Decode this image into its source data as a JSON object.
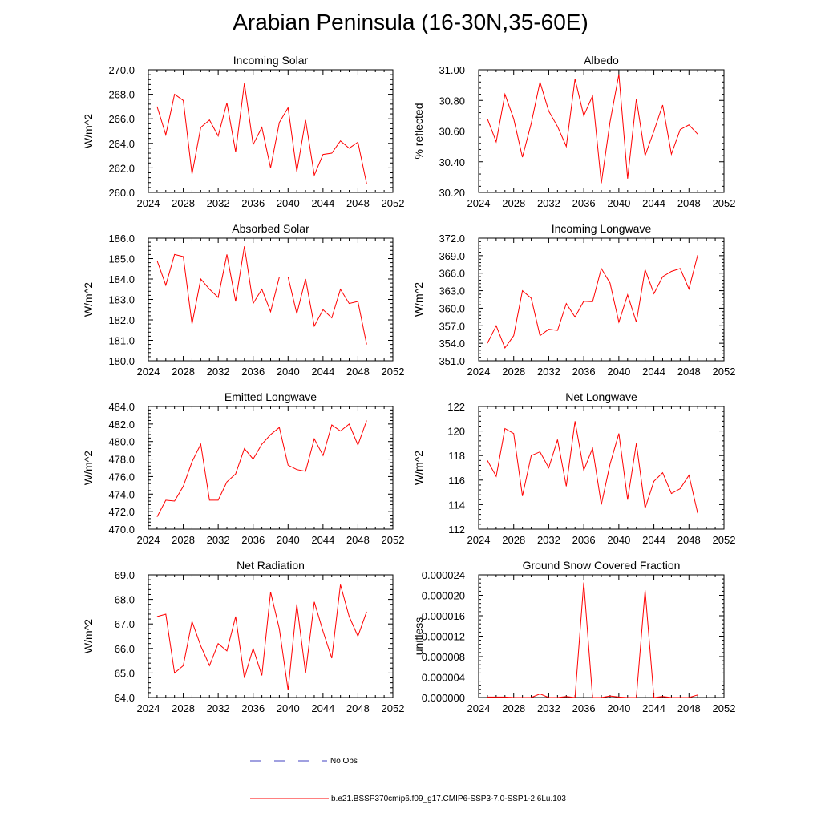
{
  "title": "Arabian Peninsula (16-30N,35-60E)",
  "legend": {
    "obs_label": "No Obs",
    "obs_color": "#4040c0",
    "model_label": "b.e21.BSSP370cmip6.f09_g17.CMIP6-SSP3-7.0-SSP1-2.6Lu.103",
    "model_color": "#ff0000"
  },
  "chart_data": [
    {
      "type": "line",
      "title": "Incoming Solar",
      "ylabel": "W/m^2",
      "xlim": [
        2024,
        2052
      ],
      "ylim": [
        260,
        270
      ],
      "xticks": [
        "2024",
        "2028",
        "2032",
        "2036",
        "2040",
        "2044",
        "2048",
        "2052"
      ],
      "yticks": [
        "260.0",
        "262.0",
        "264.0",
        "266.0",
        "268.0",
        "270.0"
      ],
      "x": [
        2025,
        2026,
        2027,
        2028,
        2029,
        2030,
        2031,
        2032,
        2033,
        2034,
        2035,
        2036,
        2037,
        2038,
        2039,
        2040,
        2041,
        2042,
        2043,
        2044,
        2045,
        2046,
        2047,
        2048,
        2049
      ],
      "y": [
        267.0,
        264.7,
        268.0,
        267.5,
        261.5,
        265.3,
        265.9,
        264.6,
        267.3,
        263.3,
        268.9,
        263.9,
        265.3,
        262.0,
        265.7,
        266.9,
        261.7,
        265.9,
        261.4,
        263.1,
        263.2,
        264.2,
        263.6,
        264.1,
        260.7
      ]
    },
    {
      "type": "line",
      "title": "Albedo",
      "ylabel": "% reflected",
      "xlim": [
        2024,
        2052
      ],
      "ylim": [
        30.2,
        31.0
      ],
      "xticks": [
        "2024",
        "2028",
        "2032",
        "2036",
        "2040",
        "2044",
        "2048",
        "2052"
      ],
      "yticks": [
        "30.20",
        "30.40",
        "30.60",
        "30.80",
        "31.00"
      ],
      "x": [
        2025,
        2026,
        2027,
        2028,
        2029,
        2030,
        2031,
        2032,
        2033,
        2034,
        2035,
        2036,
        2037,
        2038,
        2039,
        2040,
        2041,
        2042,
        2043,
        2044,
        2045,
        2046,
        2047,
        2048,
        2049
      ],
      "y": [
        30.68,
        30.53,
        30.84,
        30.68,
        30.43,
        30.65,
        30.92,
        30.73,
        30.63,
        30.5,
        30.94,
        30.7,
        30.83,
        30.26,
        30.66,
        30.97,
        30.29,
        30.81,
        30.44,
        30.6,
        30.77,
        30.45,
        30.61,
        30.64,
        30.58
      ]
    },
    {
      "type": "line",
      "title": "Absorbed Solar",
      "ylabel": "W/m^2",
      "xlim": [
        2024,
        2052
      ],
      "ylim": [
        180,
        186
      ],
      "xticks": [
        "2024",
        "2028",
        "2032",
        "2036",
        "2040",
        "2044",
        "2048",
        "2052"
      ],
      "yticks": [
        "180.0",
        "181.0",
        "182.0",
        "183.0",
        "184.0",
        "185.0",
        "186.0"
      ],
      "x": [
        2025,
        2026,
        2027,
        2028,
        2029,
        2030,
        2031,
        2032,
        2033,
        2034,
        2035,
        2036,
        2037,
        2038,
        2039,
        2040,
        2041,
        2042,
        2043,
        2044,
        2045,
        2046,
        2047,
        2048,
        2049
      ],
      "y": [
        184.9,
        183.7,
        185.2,
        185.1,
        181.8,
        184.0,
        183.5,
        183.1,
        185.2,
        182.9,
        185.6,
        182.8,
        183.5,
        182.4,
        184.1,
        184.1,
        182.3,
        184.0,
        181.7,
        182.5,
        182.1,
        183.5,
        182.8,
        182.9,
        180.8
      ]
    },
    {
      "type": "line",
      "title": "Incoming Longwave",
      "ylabel": "W/m^2",
      "xlim": [
        2024,
        2052
      ],
      "ylim": [
        351,
        372
      ],
      "xticks": [
        "2024",
        "2028",
        "2032",
        "2036",
        "2040",
        "2044",
        "2048",
        "2052"
      ],
      "yticks": [
        "351.0",
        "354.0",
        "357.0",
        "360.0",
        "363.0",
        "366.0",
        "369.0",
        "372.0"
      ],
      "x": [
        2025,
        2026,
        2027,
        2028,
        2029,
        2030,
        2031,
        2032,
        2033,
        2034,
        2035,
        2036,
        2037,
        2038,
        2039,
        2040,
        2041,
        2042,
        2043,
        2044,
        2045,
        2046,
        2047,
        2048,
        2049
      ],
      "y": [
        354.0,
        357.0,
        353.2,
        355.3,
        363.0,
        361.7,
        355.3,
        356.4,
        356.2,
        360.8,
        358.5,
        361.2,
        361.1,
        366.8,
        364.3,
        357.6,
        362.3,
        357.6,
        366.6,
        362.5,
        365.4,
        366.3,
        366.8,
        363.3,
        369.1
      ]
    },
    {
      "type": "line",
      "title": "Emitted Longwave",
      "ylabel": "W/m^2",
      "xlim": [
        2024,
        2052
      ],
      "ylim": [
        470,
        484
      ],
      "xticks": [
        "2024",
        "2028",
        "2032",
        "2036",
        "2040",
        "2044",
        "2048",
        "2052"
      ],
      "yticks": [
        "470.0",
        "472.0",
        "474.0",
        "476.0",
        "478.0",
        "480.0",
        "482.0",
        "484.0"
      ],
      "x": [
        2025,
        2026,
        2027,
        2028,
        2029,
        2030,
        2031,
        2032,
        2033,
        2034,
        2035,
        2036,
        2037,
        2038,
        2039,
        2040,
        2041,
        2042,
        2043,
        2044,
        2045,
        2046,
        2047,
        2048,
        2049
      ],
      "y": [
        471.4,
        473.3,
        473.2,
        474.9,
        477.7,
        479.7,
        473.3,
        473.3,
        475.4,
        476.3,
        479.2,
        478.0,
        479.7,
        480.8,
        481.6,
        477.3,
        476.8,
        476.6,
        480.3,
        478.4,
        481.9,
        481.2,
        482.0,
        479.6,
        482.4
      ]
    },
    {
      "type": "line",
      "title": "Net Longwave",
      "ylabel": "W/m^2",
      "xlim": [
        2024,
        2052
      ],
      "ylim": [
        112,
        122
      ],
      "xticks": [
        "2024",
        "2028",
        "2032",
        "2036",
        "2040",
        "2044",
        "2048",
        "2052"
      ],
      "yticks": [
        "112",
        "114",
        "116",
        "118",
        "120",
        "122"
      ],
      "x": [
        2025,
        2026,
        2027,
        2028,
        2029,
        2030,
        2031,
        2032,
        2033,
        2034,
        2035,
        2036,
        2037,
        2038,
        2039,
        2040,
        2041,
        2042,
        2043,
        2044,
        2045,
        2046,
        2047,
        2048,
        2049
      ],
      "y": [
        117.6,
        116.3,
        120.2,
        119.8,
        114.7,
        118.0,
        118.3,
        117.0,
        119.3,
        115.5,
        120.8,
        116.8,
        118.6,
        114.0,
        117.3,
        119.8,
        114.4,
        119.0,
        113.7,
        115.9,
        116.6,
        114.9,
        115.3,
        116.4,
        113.3
      ]
    },
    {
      "type": "line",
      "title": "Net Radiation",
      "ylabel": "W/m^2",
      "xlim": [
        2024,
        2052
      ],
      "ylim": [
        64,
        69
      ],
      "xticks": [
        "2024",
        "2028",
        "2032",
        "2036",
        "2040",
        "2044",
        "2048",
        "2052"
      ],
      "yticks": [
        "64.0",
        "65.0",
        "66.0",
        "67.0",
        "68.0",
        "69.0"
      ],
      "x": [
        2025,
        2026,
        2027,
        2028,
        2029,
        2030,
        2031,
        2032,
        2033,
        2034,
        2035,
        2036,
        2037,
        2038,
        2039,
        2040,
        2041,
        2042,
        2043,
        2044,
        2045,
        2046,
        2047,
        2048,
        2049
      ],
      "y": [
        67.3,
        67.4,
        65.0,
        65.3,
        67.1,
        66.1,
        65.3,
        66.2,
        65.9,
        67.3,
        64.8,
        66.0,
        64.9,
        68.3,
        66.8,
        64.3,
        67.8,
        65.0,
        67.9,
        66.7,
        65.6,
        68.6,
        67.3,
        66.5,
        67.5
      ]
    },
    {
      "type": "line",
      "title": "Ground Snow Covered Fraction",
      "ylabel": "unitless",
      "xlim": [
        2024,
        2052
      ],
      "ylim": [
        0,
        2.4e-05
      ],
      "xticks": [
        "2024",
        "2028",
        "2032",
        "2036",
        "2040",
        "2044",
        "2048",
        "2052"
      ],
      "yticks": [
        "0.000000",
        "0.000004",
        "0.000008",
        "0.000012",
        "0.000016",
        "0.000020",
        "0.000024"
      ],
      "x": [
        2025,
        2026,
        2027,
        2028,
        2029,
        2030,
        2031,
        2032,
        2033,
        2034,
        2035,
        2036,
        2037,
        2038,
        2039,
        2040,
        2041,
        2042,
        2043,
        2044,
        2045,
        2046,
        2047,
        2048,
        2049
      ],
      "y": [
        1e-07,
        1e-07,
        1e-07,
        0.0,
        0.0,
        0.0,
        7e-07,
        0.0,
        0.0,
        2e-07,
        0.0,
        2.25e-05,
        0.0,
        0.0,
        3e-07,
        1e-07,
        0.0,
        0.0,
        2.1e-05,
        0.0,
        2e-07,
        0.0,
        0.0,
        0.0,
        5e-07
      ]
    }
  ]
}
